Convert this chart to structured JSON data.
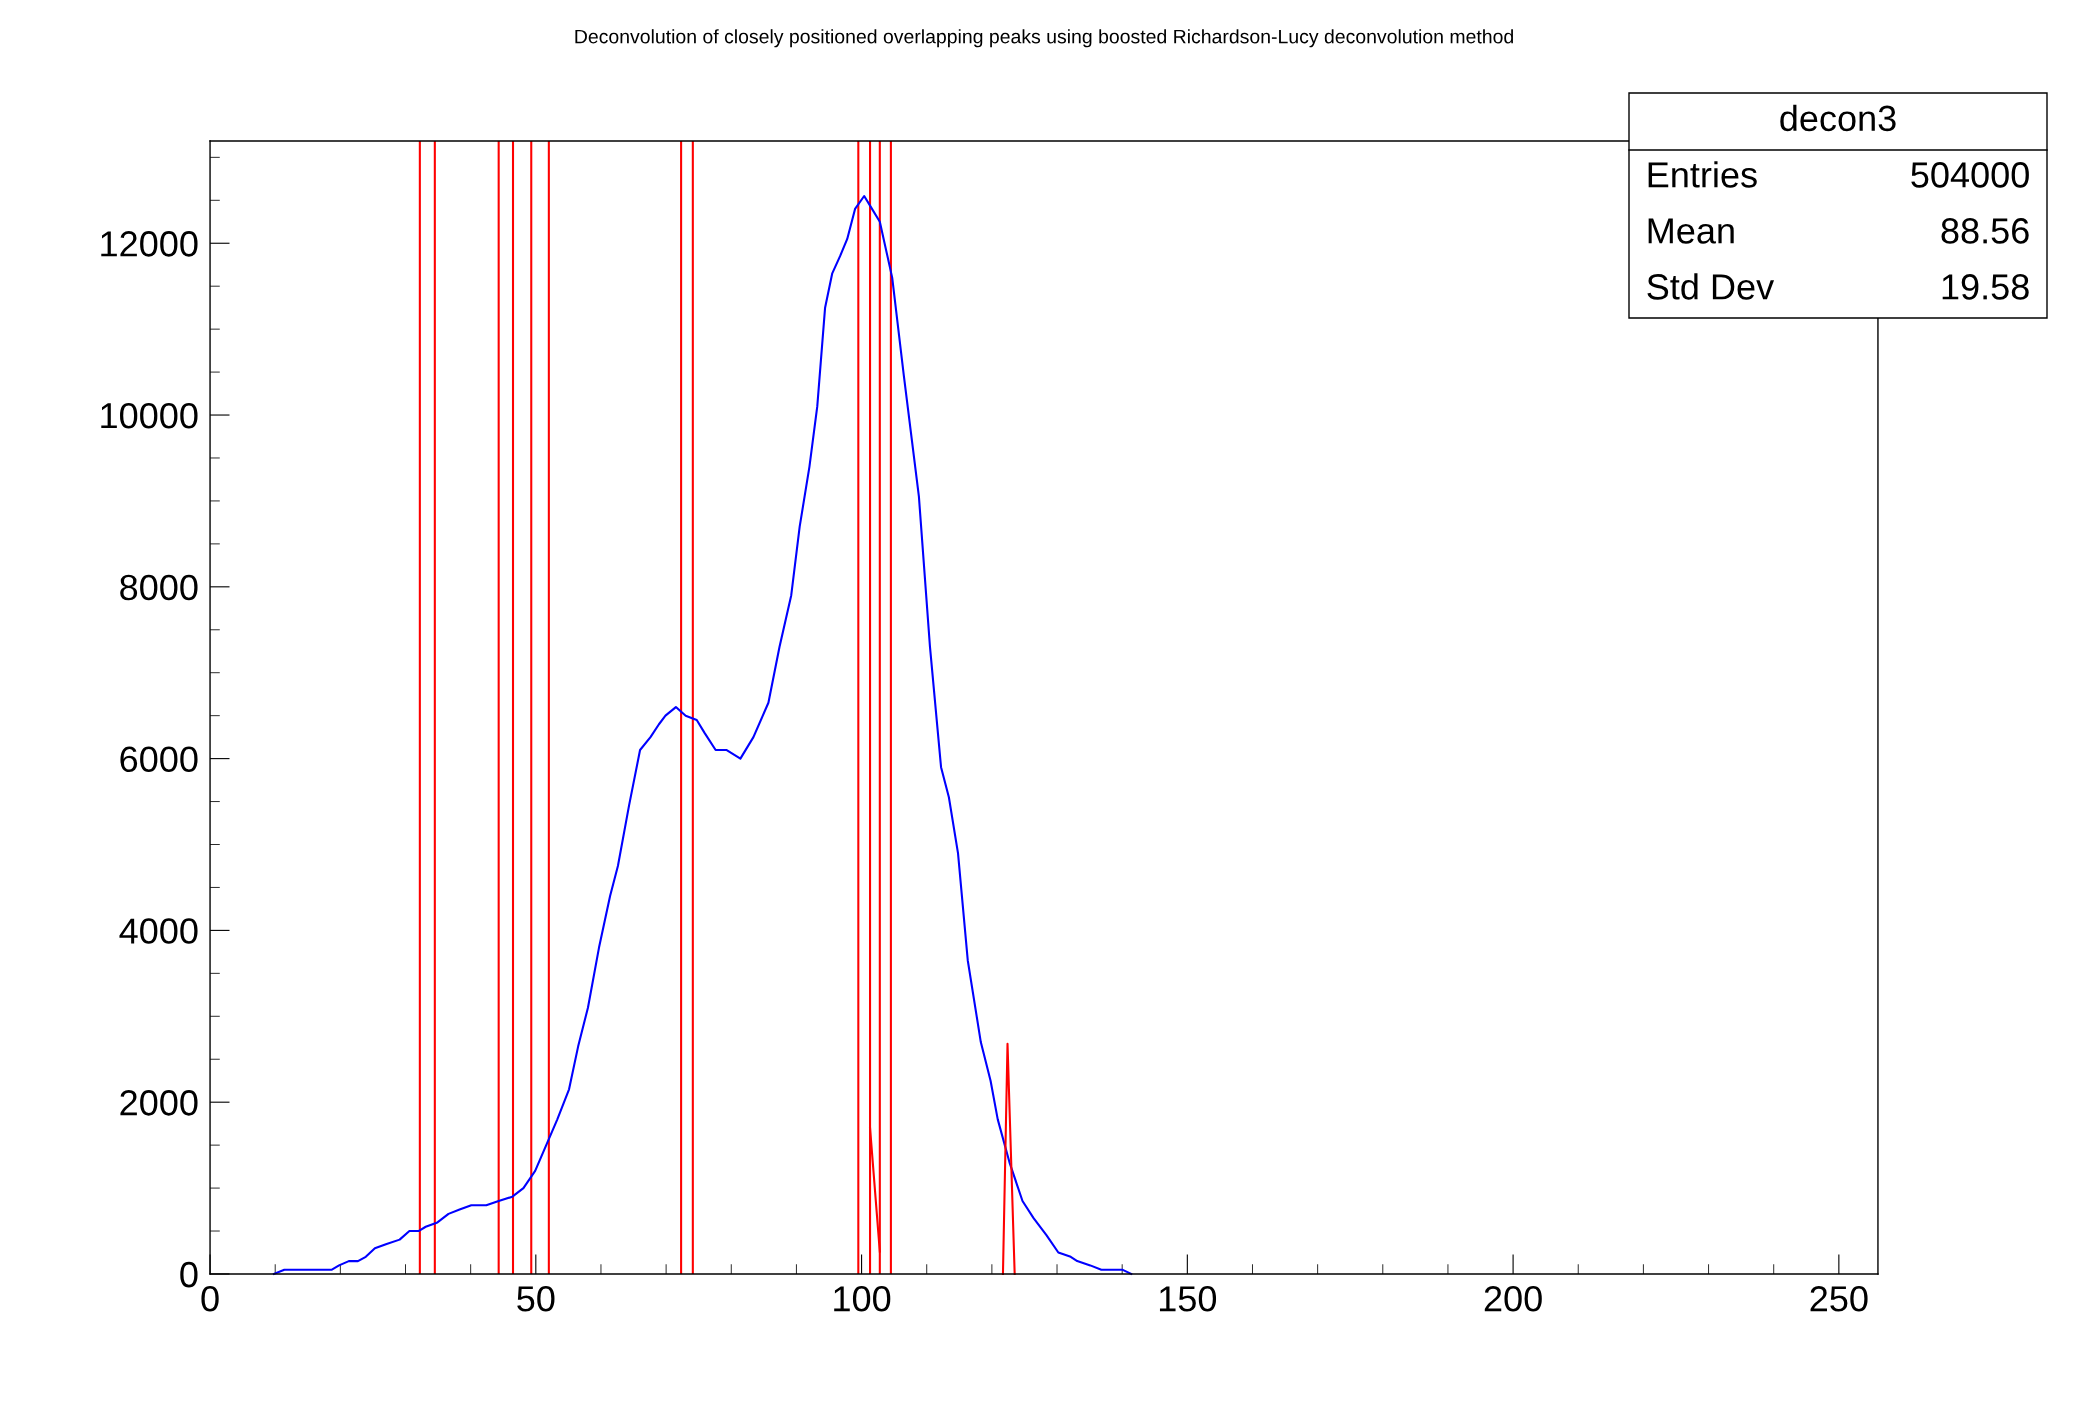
{
  "chart_data": {
    "type": "line",
    "title": "Deconvolution of closely positioned overlapping peaks using boosted Richardson-Lucy deconvolution method",
    "xlim": [
      0,
      256
    ],
    "xticks": [
      0,
      50,
      100,
      150,
      200,
      250
    ],
    "ylim": [
      0,
      13190
    ],
    "yticks": [
      0,
      2000,
      4000,
      6000,
      8000,
      10000,
      12000
    ],
    "grid": false,
    "legend": false,
    "marker": "none",
    "line_style": "solid",
    "series": [
      {
        "color": "#0000ff",
        "x": [
          9.8,
          11.4,
          15.2,
          16.4,
          18.7,
          19.8,
          21.3,
          22.7,
          23.9,
          25.3,
          27.1,
          29.1,
          30.6,
          32.0,
          33.1,
          34.9,
          36.6,
          38.3,
          40.1,
          42.4,
          44.3,
          46.4,
          48.1,
          49.9,
          51.6,
          53.3,
          55.1,
          56.5,
          58.0,
          59.7,
          61.4,
          62.6,
          64.3,
          66.0,
          67.6,
          68.9,
          69.9,
          71.5,
          73.0,
          74.7,
          75.9,
          77.6,
          79.3,
          81.4,
          83.4,
          85.7,
          87.4,
          89.2,
          90.5,
          92.0,
          93.2,
          94.4,
          95.5,
          96.7,
          97.8,
          99.0,
          100.4,
          101.6,
          102.8,
          104.7,
          106.5,
          108.8,
          110.5,
          112.2,
          113.4,
          114.8,
          116.3,
          118.3,
          119.8,
          120.9,
          122.7,
          124.7,
          126.4,
          128.4,
          130.2,
          132.1,
          133.1,
          135.1,
          136.8,
          140.0,
          141.4
        ],
        "values": [
          0,
          50,
          50,
          50,
          50,
          100,
          150,
          150,
          200,
          300,
          350,
          400,
          500,
          500,
          550,
          600,
          700,
          750,
          800,
          800,
          850,
          900,
          1000,
          1200,
          1500,
          1800,
          2150,
          2650,
          3100,
          3800,
          4400,
          4750,
          5450,
          6100,
          6250,
          6400,
          6500,
          6600,
          6500,
          6450,
          6300,
          6100,
          6100,
          6000,
          6250,
          6650,
          7300,
          7900,
          8700,
          9400,
          10100,
          11250,
          11650,
          11850,
          12050,
          12400,
          12550,
          12400,
          12250,
          11600,
          10450,
          9050,
          7300,
          5900,
          5550,
          4900,
          3650,
          2700,
          2250,
          1800,
          1300,
          850,
          650,
          450,
          250,
          200,
          150,
          100,
          50,
          50,
          0
        ]
      },
      {
        "color": "#ff0000",
        "x": [
          101.3,
          102.8,
          112.0,
          121.7,
          122.4,
          123.5
        ],
        "values": [
          1700,
          260,
          null,
          0,
          2680,
          0
        ]
      }
    ],
    "ref_lines": [
      {
        "axis": "x",
        "value": 32.2,
        "color": "#ff0000"
      },
      {
        "axis": "x",
        "value": 34.5,
        "color": "#ff0000"
      },
      {
        "axis": "x",
        "value": 44.3,
        "color": "#ff0000"
      },
      {
        "axis": "x",
        "value": 46.5,
        "color": "#ff0000"
      },
      {
        "axis": "x",
        "value": 49.3,
        "color": "#ff0000"
      },
      {
        "axis": "x",
        "value": 52.0,
        "color": "#ff0000"
      },
      {
        "axis": "x",
        "value": 72.3,
        "color": "#ff0000"
      },
      {
        "axis": "x",
        "value": 74.1,
        "color": "#ff0000"
      },
      {
        "axis": "x",
        "value": 99.5,
        "color": "#ff0000"
      },
      {
        "axis": "x",
        "value": 101.3,
        "color": "#ff0000"
      },
      {
        "axis": "x",
        "value": 102.8,
        "color": "#ff0000"
      },
      {
        "axis": "x",
        "value": 104.5,
        "color": "#ff0000"
      }
    ],
    "annotations": [
      "decon3",
      "Entries",
      "504000",
      "Mean",
      "88.56",
      "Std Dev",
      "19.58"
    ]
  }
}
